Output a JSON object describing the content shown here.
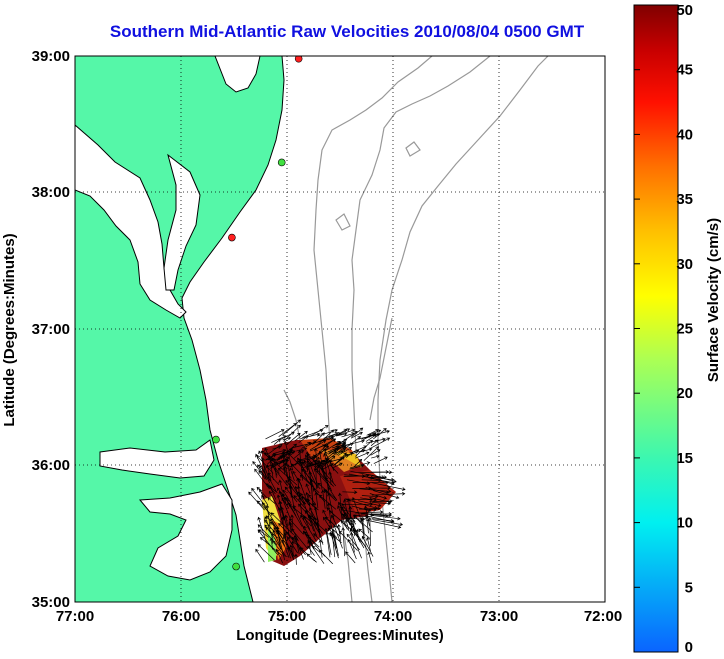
{
  "title": "Southern Mid-Atlantic Raw Velocities 2010/08/04 0500 GMT",
  "map": {
    "xlabel": "Longitude (Degrees:Minutes)",
    "ylabel": "Latitude (Degrees:Minutes)",
    "lon_range": [
      -77,
      -72
    ],
    "lat_range": [
      35,
      39
    ],
    "x_ticks": [
      "77:00",
      "76:00",
      "75:00",
      "74:00",
      "73:00",
      "72:00"
    ],
    "y_ticks": [
      "39:00",
      "38:00",
      "37:00",
      "36:00",
      "35:00"
    ],
    "grid": "dotted",
    "land_color": "#55f7a8",
    "coastline_color": "#000000",
    "bathymetry_color": "#999999",
    "stations": [
      {
        "lon": -74.89,
        "lat": 38.98,
        "status": "red"
      },
      {
        "lon": -75.05,
        "lat": 38.22,
        "status": "green"
      },
      {
        "lon": -75.52,
        "lat": 37.67,
        "status": "red"
      },
      {
        "lon": -75.67,
        "lat": 36.19,
        "status": "green"
      },
      {
        "lon": -75.48,
        "lat": 35.26,
        "status": "green"
      }
    ]
  },
  "colorbar": {
    "label": "Surface Velocity (cm/s)",
    "ticks": [
      "50",
      "45",
      "40",
      "35",
      "30",
      "25",
      "20",
      "15",
      "10",
      "5",
      "0"
    ],
    "min": 0,
    "max": 50,
    "units": "cm/s",
    "colormap": "jet"
  }
}
